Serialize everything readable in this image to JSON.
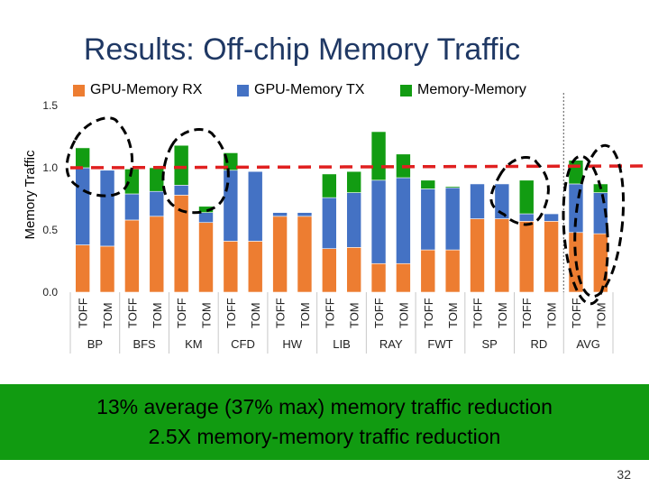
{
  "title": "Results: Off-chip Memory Traffic",
  "banner": {
    "line1": "13% average (37% max) memory traffic reduction",
    "line2": "2.5X memory-memory traffic reduction"
  },
  "slide_number": "32",
  "colors": {
    "rx": "#ed7d31",
    "tx": "#4472c4",
    "mm": "#129c12",
    "ref_line": "#e02020",
    "circle": "#000000"
  },
  "chart_data": {
    "type": "bar",
    "stacked": true,
    "ylabel": "Memory Traffic",
    "ylim": [
      0,
      1.5
    ],
    "yticks": [
      "0.0",
      "0.5",
      "1.0",
      "1.5"
    ],
    "yticks_values": [
      0,
      0.5,
      1.0,
      1.5
    ],
    "reference_line": 1.0,
    "groups": [
      "BP",
      "BFS",
      "KM",
      "CFD",
      "HW",
      "LIB",
      "RAY",
      "FWT",
      "SP",
      "RD",
      "AVG"
    ],
    "subcategories": [
      "TOFF",
      "TOM"
    ],
    "legend": [
      "GPU-Memory RX",
      "GPU-Memory TX",
      "Memory-Memory"
    ],
    "legend_position": "top",
    "series": [
      {
        "name": "GPU-Memory RX",
        "values": [
          0.38,
          0.37,
          0.58,
          0.61,
          0.78,
          0.56,
          0.41,
          0.41,
          0.61,
          0.61,
          0.35,
          0.36,
          0.23,
          0.23,
          0.34,
          0.34,
          0.59,
          0.59,
          0.57,
          0.57,
          0.48,
          0.47
        ]
      },
      {
        "name": "GPU-Memory TX",
        "values": [
          0.62,
          0.61,
          0.21,
          0.2,
          0.08,
          0.08,
          0.57,
          0.56,
          0.03,
          0.03,
          0.41,
          0.44,
          0.67,
          0.69,
          0.49,
          0.5,
          0.28,
          0.28,
          0.06,
          0.06,
          0.39,
          0.33
        ]
      },
      {
        "name": "Memory-Memory",
        "values": [
          0.16,
          0.0,
          0.2,
          0.19,
          0.32,
          0.05,
          0.14,
          0.0,
          0.0,
          0.0,
          0.19,
          0.17,
          0.39,
          0.19,
          0.07,
          0.01,
          0.0,
          0.0,
          0.27,
          0.0,
          0.19,
          0.07
        ]
      }
    ]
  }
}
